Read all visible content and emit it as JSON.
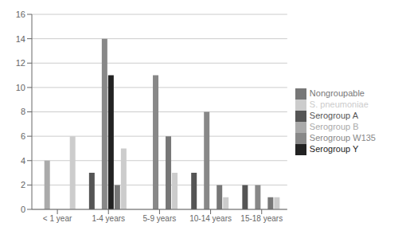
{
  "chart_data": {
    "type": "bar",
    "categories": [
      "< 1 year",
      "1-4 years",
      "5-9 years",
      "10-14 years",
      "15-18 years"
    ],
    "series": [
      {
        "name": "Serogroup A",
        "color": "#555555",
        "values": [
          0,
          3,
          0,
          3,
          2
        ]
      },
      {
        "name": "Serogroup B",
        "color": "#aaaaaa",
        "values": [
          4,
          0,
          0,
          0,
          0
        ]
      },
      {
        "name": "Serogroup W135",
        "color": "#888888",
        "values": [
          0,
          14,
          11,
          8,
          2
        ]
      },
      {
        "name": "Serogroup Y",
        "color": "#222222",
        "values": [
          0,
          11,
          0,
          0,
          0
        ]
      },
      {
        "name": "Nongroupable",
        "color": "#777777",
        "values": [
          0,
          2,
          6,
          2,
          1
        ]
      },
      {
        "name": "S. pneumoniae",
        "color": "#cccccc",
        "values": [
          6,
          5,
          3,
          1,
          1
        ]
      }
    ],
    "ylim": [
      0,
      16
    ],
    "yticks": [
      0,
      2,
      4,
      6,
      8,
      10,
      12,
      14,
      16
    ],
    "grid": true,
    "legend": "right"
  }
}
